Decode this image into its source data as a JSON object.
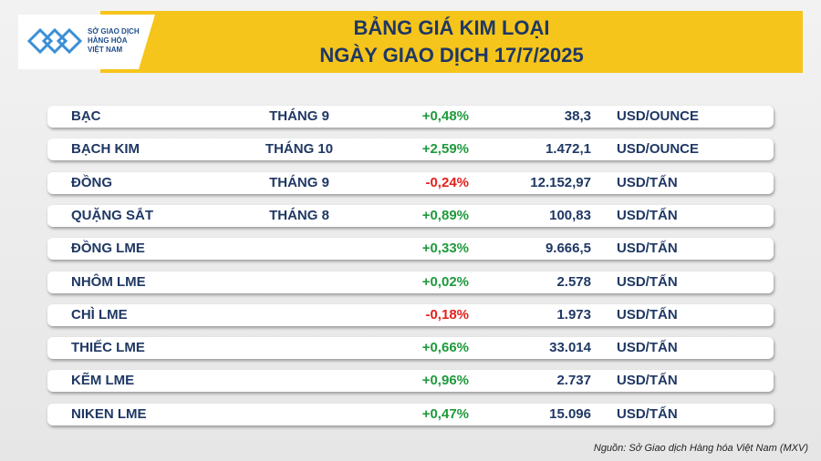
{
  "header": {
    "logo": [
      "SỞ GIAO DỊCH",
      "HÀNG HÓA",
      "VIỆT NAM"
    ],
    "title": [
      "BẢNG GIÁ KIM LOẠI",
      "NGÀY GIAO DỊCH 17/7/2025"
    ]
  },
  "table": {
    "rows": [
      [
        "BẠC",
        "THÁNG 9",
        "+0,48%",
        "38,3",
        "USD/OUNCE"
      ],
      [
        "BẠCH KIM",
        "THÁNG 10",
        "+2,59%",
        "1.472,1",
        "USD/OUNCE"
      ],
      [
        "ĐỒNG",
        "THÁNG 9",
        "-0,24%",
        "12.152,97",
        "USD/TẤN"
      ],
      [
        "QUẶNG SẮT",
        "THÁNG 8",
        "+0,89%",
        "100,83",
        "USD/TẤN"
      ],
      [
        "ĐỒNG LME",
        null,
        "+0,33%",
        "9.666,5",
        "USD/TẤN"
      ],
      [
        "NHÔM LME",
        null,
        "+0,02%",
        "2.578",
        "USD/TẤN"
      ],
      [
        "CHÌ LME",
        null,
        "-0,18%",
        "1.973",
        "USD/TẤN"
      ],
      [
        "THIẾC LME",
        null,
        "+0,66%",
        "33.014",
        "USD/TẤN"
      ],
      [
        "KẼM LME",
        null,
        "+0,96%",
        "2.737",
        "USD/TẤN"
      ],
      [
        "NIKEN LME",
        null,
        "+0,47%",
        "15.096",
        "USD/TẤN"
      ]
    ]
  },
  "source": "Nguồn: Sở Giao dịch Hàng hóa Việt Nam (MXV)"
}
